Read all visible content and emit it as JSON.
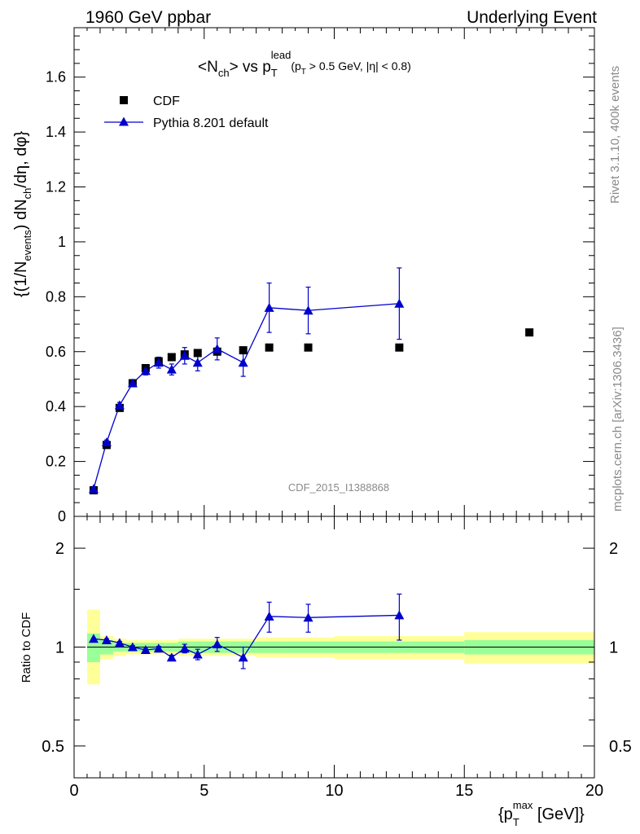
{
  "header": {
    "left": "1960 GeV ppbar",
    "right": "Underlying Event"
  },
  "side": {
    "rivet": "Rivet 3.1.10,  400k events",
    "mcplots": "mcplots.cern.ch [arXiv:1306.3436]"
  },
  "colors": {
    "mc": "#0000cc",
    "data": "#000000",
    "band_outer": "#ffff99",
    "band_inner": "#99ff99"
  },
  "chart_data": [
    {
      "type": "scatter",
      "title": "<N_ch> vs p_T^lead (p_T > 0.5 GeV, |η| < 0.8)",
      "ylabel": "{(1/N_events) dN_ch/dη, dφ}",
      "xlim": [
        0,
        20
      ],
      "ylim": [
        0,
        1.78
      ],
      "yticks": [
        0,
        0.2,
        0.4,
        0.6,
        0.8,
        1,
        1.2,
        1.4,
        1.6
      ],
      "ytick_labels": [
        "0",
        "0.2",
        "0.4",
        "0.6",
        "0.8",
        "1",
        "1.2",
        "1.4",
        "1.6"
      ],
      "watermark": "CDF_2015_I1388868",
      "legend_position": "top-left",
      "series": [
        {
          "name": "CDF",
          "marker": "square",
          "x": [
            0.75,
            1.25,
            1.75,
            2.25,
            2.75,
            3.25,
            3.75,
            4.25,
            4.75,
            5.5,
            6.5,
            7.5,
            9,
            12.5,
            17.5
          ],
          "y": [
            0.095,
            0.26,
            0.395,
            0.485,
            0.54,
            0.565,
            0.58,
            0.59,
            0.595,
            0.6,
            0.605,
            0.615,
            0.615,
            0.615,
            0.67
          ]
        },
        {
          "name": "Pythia 8.201 default",
          "marker": "triangle",
          "x": [
            0.75,
            1.25,
            1.75,
            2.25,
            2.75,
            3.25,
            3.75,
            4.25,
            4.75,
            5.5,
            6.5,
            7.5,
            9,
            12.5
          ],
          "y": [
            0.1,
            0.27,
            0.405,
            0.485,
            0.53,
            0.56,
            0.535,
            0.585,
            0.56,
            0.61,
            0.56,
            0.76,
            0.75,
            0.775
          ],
          "err": [
            0.005,
            0.008,
            0.01,
            0.012,
            0.015,
            0.02,
            0.02,
            0.03,
            0.03,
            0.04,
            0.05,
            0.09,
            0.085,
            0.13
          ]
        }
      ]
    },
    {
      "type": "scatter",
      "ylabel": "Ratio to CDF",
      "xlabel": "{p_T^max [GeV]}",
      "xlim": [
        0,
        20
      ],
      "xticks": [
        0,
        5,
        10,
        15,
        20
      ],
      "xtick_labels": [
        "0",
        "5",
        "10",
        "15",
        "20"
      ],
      "yscale": "log",
      "ylim": [
        0.4,
        2.5
      ],
      "yticks": [
        0.5,
        1,
        2
      ],
      "ytick_labels": [
        "0.5",
        "1",
        "2"
      ],
      "bands": {
        "edges": [
          0.5,
          1,
          1.5,
          2,
          2.5,
          3,
          3.5,
          4,
          4.5,
          5,
          6,
          7,
          8,
          10,
          15,
          20
        ],
        "outer_lo": [
          0.77,
          0.92,
          0.94,
          0.95,
          0.95,
          0.95,
          0.95,
          0.94,
          0.94,
          0.94,
          0.94,
          0.93,
          0.93,
          0.92,
          0.89
        ],
        "outer_hi": [
          1.3,
          1.08,
          1.06,
          1.05,
          1.05,
          1.05,
          1.05,
          1.06,
          1.06,
          1.06,
          1.06,
          1.07,
          1.07,
          1.08,
          1.11
        ],
        "inner_lo": [
          0.9,
          0.95,
          0.97,
          0.97,
          0.97,
          0.97,
          0.97,
          0.96,
          0.96,
          0.96,
          0.96,
          0.96,
          0.96,
          0.96,
          0.95
        ],
        "inner_hi": [
          1.1,
          1.05,
          1.03,
          1.03,
          1.03,
          1.03,
          1.03,
          1.04,
          1.04,
          1.04,
          1.04,
          1.04,
          1.04,
          1.04,
          1.05
        ]
      },
      "series": [
        {
          "name": "Pythia 8.201 default",
          "x": [
            0.75,
            1.25,
            1.75,
            2.25,
            2.75,
            3.25,
            3.75,
            4.25,
            4.75,
            5.5,
            6.5,
            7.5,
            9,
            12.5
          ],
          "y": [
            1.06,
            1.05,
            1.03,
            1.0,
            0.98,
            0.99,
            0.93,
            0.99,
            0.95,
            1.02,
            0.93,
            1.24,
            1.23,
            1.25
          ],
          "err": [
            0.005,
            0.01,
            0.01,
            0.01,
            0.01,
            0.015,
            0.015,
            0.03,
            0.035,
            0.05,
            0.07,
            0.13,
            0.12,
            0.2
          ]
        }
      ]
    }
  ]
}
